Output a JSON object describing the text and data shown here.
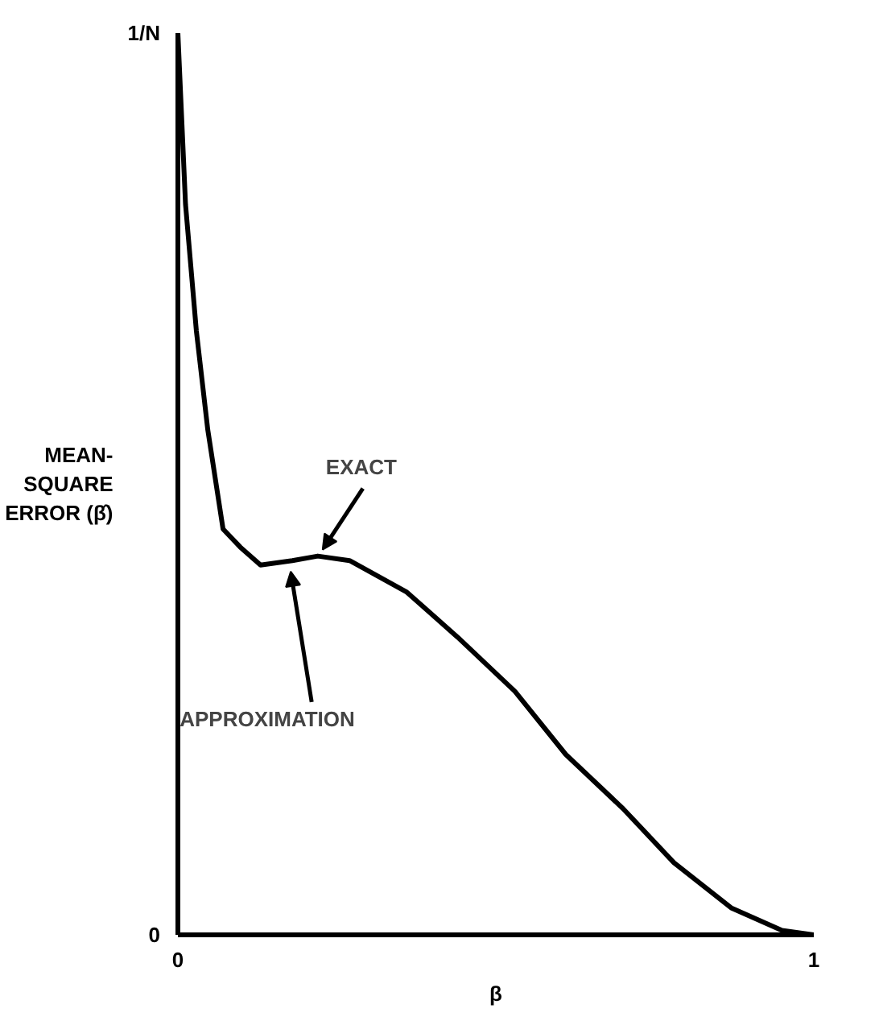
{
  "chart_data": {
    "type": "line",
    "xlabel": "β",
    "ylabel": "MEAN-SQUARE ERROR (β̂)",
    "xlim": [
      0,
      1
    ],
    "ylim": [
      0,
      1
    ],
    "xticks": [
      0,
      1
    ],
    "yticks": [
      0,
      {
        "value": 1,
        "label": "1/N"
      }
    ],
    "marker": "none",
    "line_style": "solid",
    "series": [
      {
        "color": "#000000",
        "x": [
          0,
          0.012,
          0.029,
          0.047,
          0.071,
          0.098,
          0.13,
          0.18,
          0.22,
          0.27,
          0.36,
          0.44,
          0.53,
          0.61,
          0.7,
          0.78,
          0.87,
          0.95,
          1.0
        ],
        "values": [
          1.0,
          0.81,
          0.67,
          0.56,
          0.45,
          0.43,
          0.41,
          0.415,
          0.42,
          0.415,
          0.38,
          0.33,
          0.27,
          0.2,
          0.14,
          0.08,
          0.03,
          0.005,
          0
        ]
      }
    ],
    "annotations": [
      {
        "text": "EXACT",
        "x": 0.22,
        "y": 0.42
      },
      {
        "text": "APPROXIMATION",
        "x": 0.18,
        "y": 0.41
      }
    ]
  }
}
